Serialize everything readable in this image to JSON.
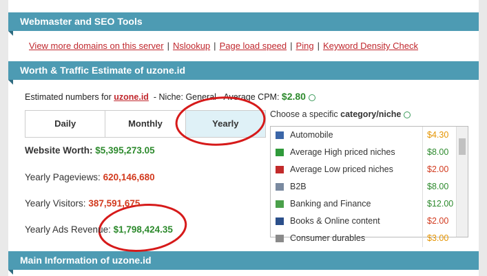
{
  "tools": {
    "title": "Webmaster and SEO Tools",
    "links": [
      "View more domains on this server",
      "Nslookup",
      "Page load speed",
      "Ping",
      "Keyword Density Check"
    ],
    "separator": "|"
  },
  "estimate": {
    "title": "Worth & Traffic Estimate of uzone.id",
    "intro": {
      "prefix": "Estimated numbers for",
      "domain": "uzone.id",
      "niche_label": "- Niche:",
      "niche": "General",
      "cpm_label": "- Average CPM:",
      "cpm": "$2.80"
    },
    "tabs": [
      "Daily",
      "Monthly",
      "Yearly"
    ],
    "active_tab": 2,
    "stats": [
      {
        "label": "Website Worth:",
        "value": "$5,395,273.05",
        "color": "#2d8a2d",
        "bold_label": true
      },
      {
        "label": "Yearly Pageviews:",
        "value": "620,146,680",
        "color": "#d23a1e",
        "bold_label": false
      },
      {
        "label": "Yearly Visitors:",
        "value": "387,591,675",
        "color": "#d23a1e",
        "bold_label": false
      },
      {
        "label": "Yearly Ads Revenue:",
        "value": "$1,798,424.35",
        "color": "#2d8a2d",
        "bold_label": false
      }
    ],
    "category_heading": {
      "prefix": "Choose a specific",
      "emphasis": "category/niche"
    },
    "categories": [
      {
        "name": "Automobile",
        "price": "$4.30",
        "color": "#e59400"
      },
      {
        "name": "Average High priced niches",
        "price": "$8.00",
        "color": "#2d8a2d"
      },
      {
        "name": "Average Low priced niches",
        "price": "$2.00",
        "color": "#d23a1e"
      },
      {
        "name": "B2B",
        "price": "$8.00",
        "color": "#2d8a2d"
      },
      {
        "name": "Banking and Finance",
        "price": "$12.00",
        "color": "#2d8a2d"
      },
      {
        "name": "Books & Online content",
        "price": "$2.00",
        "color": "#d23a1e"
      },
      {
        "name": "Consumer durables",
        "price": "$3.00",
        "color": "#e59400"
      }
    ]
  },
  "main_info": {
    "title": "Main Information of uzone.id"
  }
}
